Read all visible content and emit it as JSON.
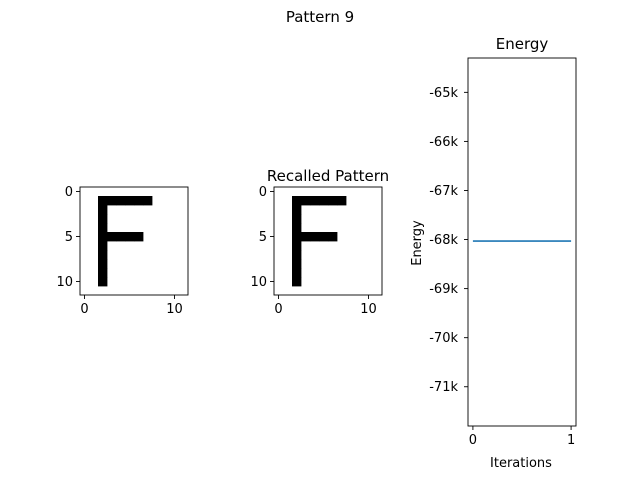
{
  "figure": {
    "suptitle": "Pattern 9"
  },
  "colors": {
    "background": "#ffffff",
    "pixel_on": "#000000",
    "pixel_off": "#ffffff",
    "line": "#1f77b4",
    "axes": "#000000"
  },
  "chart_data": [
    {
      "type": "heatmap",
      "title": "",
      "grid_size": [
        12,
        12
      ],
      "cmap": "binary",
      "xticks": [
        "0",
        "10"
      ],
      "yticks": [
        "0",
        "5",
        "10"
      ],
      "on_pixels": [
        [
          1,
          2
        ],
        [
          1,
          3
        ],
        [
          1,
          4
        ],
        [
          1,
          5
        ],
        [
          1,
          6
        ],
        [
          1,
          7
        ],
        [
          2,
          2
        ],
        [
          3,
          2
        ],
        [
          4,
          2
        ],
        [
          5,
          2
        ],
        [
          5,
          3
        ],
        [
          5,
          4
        ],
        [
          5,
          5
        ],
        [
          5,
          6
        ],
        [
          6,
          2
        ],
        [
          7,
          2
        ],
        [
          8,
          2
        ],
        [
          9,
          2
        ],
        [
          10,
          2
        ]
      ]
    },
    {
      "type": "heatmap",
      "title": "Recalled Pattern",
      "grid_size": [
        12,
        12
      ],
      "cmap": "binary",
      "xticks": [
        "0",
        "10"
      ],
      "yticks": [
        "0",
        "5",
        "10"
      ],
      "on_pixels": [
        [
          1,
          2
        ],
        [
          1,
          3
        ],
        [
          1,
          4
        ],
        [
          1,
          5
        ],
        [
          1,
          6
        ],
        [
          1,
          7
        ],
        [
          2,
          2
        ],
        [
          3,
          2
        ],
        [
          4,
          2
        ],
        [
          5,
          2
        ],
        [
          5,
          3
        ],
        [
          5,
          4
        ],
        [
          5,
          5
        ],
        [
          5,
          6
        ],
        [
          6,
          2
        ],
        [
          7,
          2
        ],
        [
          8,
          2
        ],
        [
          9,
          2
        ],
        [
          10,
          2
        ]
      ]
    },
    {
      "type": "line",
      "title": "Energy",
      "xlabel": "Iterations",
      "ylabel": "Energy",
      "xlim": [
        -0.05,
        1.05
      ],
      "ylim": [
        -71800,
        -64300
      ],
      "xticks": [
        0,
        1
      ],
      "xtick_labels": [
        "0",
        "1"
      ],
      "yticks": [
        -65000,
        -66000,
        -67000,
        -68000,
        -69000,
        -70000,
        -71000
      ],
      "ytick_labels": [
        "-65k",
        "-66k",
        "-67k",
        "-68k",
        "-69k",
        "-70k",
        "-71k"
      ],
      "series": [
        {
          "x": [
            0,
            1
          ],
          "values": [
            -68030,
            -68030
          ]
        }
      ]
    }
  ]
}
